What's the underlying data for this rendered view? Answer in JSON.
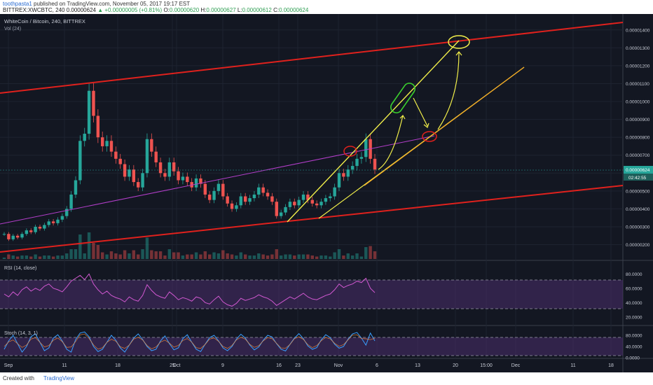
{
  "header": {
    "author": "toothpasta1",
    "published_text": "published on TradingView.com, November 05, 2017 19:17 EST",
    "symbol_line": "BITTREX:XWCBTC, 240",
    "last_price": "0.00000624",
    "change": "+0.00000005 (+0.81%)",
    "open_label": "O:",
    "open_value": "0.00000620",
    "high_label": "H:",
    "high_value": "0.00000627",
    "low_label": "L:",
    "low_value": "0.00000612",
    "close_label": "C:",
    "close_value": "0.00000624"
  },
  "chart_data": {
    "type": "line",
    "title": "WhiteCoin / Bitcoin, 240, BITTREX",
    "volume_label": "Vol (24)",
    "price_axis_labels": [
      "0.00001400",
      "0.00001300",
      "0.00001200",
      "0.00001100",
      "0.00001000",
      "0.00000900",
      "0.00000800",
      "0.00000700",
      "0.00000600",
      "0.00000500",
      "0.00000400",
      "0.00000300",
      "0.00000200"
    ],
    "current_price_label": "0.00000624",
    "countdown_label": "02:42:55",
    "x_tick_labels": [
      "Sep",
      "11",
      "18",
      "25",
      "Oct",
      "9",
      "16",
      "23",
      "Nov",
      "6",
      "13",
      "20",
      "15:00",
      "Dec",
      "11",
      "18"
    ],
    "ylim": [
      1.2e-06,
      1.45e-05
    ],
    "price_series": [
      [
        0,
        2.6e-06
      ],
      [
        1,
        2.3e-06
      ],
      [
        2,
        2.5e-06
      ],
      [
        3,
        2.4e-06
      ],
      [
        4,
        2.6e-06
      ],
      [
        5,
        2.8e-06
      ],
      [
        6,
        2.7e-06
      ],
      [
        7,
        3e-06
      ],
      [
        8,
        2.9e-06
      ],
      [
        9,
        3.1e-06
      ],
      [
        10,
        3.3e-06
      ],
      [
        11,
        3.2e-06
      ],
      [
        12,
        3.4e-06
      ],
      [
        13,
        3.6e-06
      ],
      [
        14,
        4e-06
      ],
      [
        15,
        4.8e-06
      ],
      [
        16,
        5.6e-06
      ],
      [
        17,
        7.8e-06
      ],
      [
        18,
        8.2e-06
      ],
      [
        19,
        1.06e-05
      ],
      [
        20,
        9.2e-06
      ],
      [
        21,
        8e-06
      ],
      [
        22,
        7.5e-06
      ],
      [
        23,
        7.8e-06
      ],
      [
        24,
        7.2e-06
      ],
      [
        25,
        6.8e-06
      ],
      [
        26,
        6.5e-06
      ],
      [
        27,
        5.8e-06
      ],
      [
        28,
        6.2e-06
      ],
      [
        29,
        5.5e-06
      ],
      [
        30,
        5.2e-06
      ],
      [
        31,
        6e-06
      ],
      [
        32,
        7.9e-06
      ],
      [
        33,
        7.2e-06
      ],
      [
        34,
        6.6e-06
      ],
      [
        35,
        6e-06
      ],
      [
        36,
        5.8e-06
      ],
      [
        37,
        6.6e-06
      ],
      [
        38,
        6.1e-06
      ],
      [
        39,
        5.6e-06
      ],
      [
        40,
        5.8e-06
      ],
      [
        41,
        5.5e-06
      ],
      [
        42,
        5.2e-06
      ],
      [
        43,
        5.7e-06
      ],
      [
        44,
        5.4e-06
      ],
      [
        45,
        4.8e-06
      ],
      [
        46,
        4.5e-06
      ],
      [
        47,
        5e-06
      ],
      [
        48,
        5.4e-06
      ],
      [
        49,
        4.7e-06
      ],
      [
        50,
        4.3e-06
      ],
      [
        51,
        4e-06
      ],
      [
        52,
        4.2e-06
      ],
      [
        53,
        4.7e-06
      ],
      [
        54,
        4.4e-06
      ],
      [
        55,
        4.6e-06
      ],
      [
        56,
        4.8e-06
      ],
      [
        57,
        5.2e-06
      ],
      [
        58,
        4.9e-06
      ],
      [
        59,
        4.7e-06
      ],
      [
        60,
        4.4e-06
      ],
      [
        61,
        3.6e-06
      ],
      [
        62,
        3.8e-06
      ],
      [
        63,
        4.1e-06
      ],
      [
        64,
        4.4e-06
      ],
      [
        65,
        4.2e-06
      ],
      [
        66,
        4.5e-06
      ],
      [
        67,
        4.8e-06
      ],
      [
        68,
        4.5e-06
      ],
      [
        69,
        4.3e-06
      ],
      [
        70,
        4.2e-06
      ],
      [
        71,
        4.4e-06
      ],
      [
        72,
        4.6e-06
      ],
      [
        73,
        4.7e-06
      ],
      [
        74,
        5.2e-06
      ],
      [
        75,
        6e-06
      ],
      [
        76,
        5.8e-06
      ],
      [
        77,
        6.2e-06
      ],
      [
        78,
        6.4e-06
      ],
      [
        79,
        6.8e-06
      ],
      [
        80,
        6.9e-06
      ],
      [
        81,
        7.9e-06
      ],
      [
        82,
        6.8e-06
      ],
      [
        83,
        6.2e-06
      ]
    ],
    "rsi_label": "RSI (14, close)",
    "rsi_axis_labels": [
      "80.0000",
      "60.0000",
      "40.0000",
      "20.0000"
    ],
    "rsi_ylim": [
      10,
      95
    ],
    "rsi_values": [
      52,
      48,
      55,
      50,
      58,
      62,
      56,
      60,
      57,
      63,
      66,
      60,
      58,
      55,
      62,
      70,
      74,
      78,
      72,
      80,
      66,
      58,
      52,
      56,
      50,
      47,
      45,
      41,
      48,
      44,
      42,
      50,
      65,
      57,
      51,
      48,
      46,
      55,
      50,
      44,
      47,
      45,
      42,
      48,
      46,
      40,
      38,
      44,
      49,
      41,
      37,
      35,
      39,
      46,
      43,
      45,
      47,
      51,
      48,
      46,
      42,
      36,
      40,
      44,
      48,
      45,
      49,
      53,
      48,
      45,
      44,
      47,
      50,
      52,
      58,
      66,
      61,
      64,
      66,
      70,
      68,
      74,
      60,
      54
    ],
    "stoch_label": "Stoch (14, 3, 1)",
    "stoch_axis_labels": [
      "80.0000",
      "40.0000",
      "0.0000"
    ],
    "stoch_ylim": [
      0,
      100
    ],
    "stoch_values": [
      30,
      60,
      80,
      50,
      20,
      40,
      75,
      85,
      55,
      25,
      35,
      70,
      82,
      60,
      30,
      20,
      65,
      88,
      92,
      75,
      40,
      22,
      30,
      55,
      80,
      62,
      35,
      20,
      45,
      70,
      85,
      65,
      40,
      25,
      30,
      60,
      78,
      50,
      28,
      35,
      68,
      82,
      55,
      30,
      22,
      48,
      72,
      80,
      60,
      35,
      25,
      40,
      66,
      84,
      70,
      45,
      28,
      38,
      62,
      80,
      74,
      50,
      30,
      24,
      48,
      70,
      86,
      68,
      42,
      30,
      36,
      64,
      82,
      72,
      48,
      34,
      40,
      66,
      85,
      90,
      70,
      45,
      88,
      60
    ]
  },
  "footer": {
    "created_with": "Created with",
    "brand": "TradingView"
  }
}
